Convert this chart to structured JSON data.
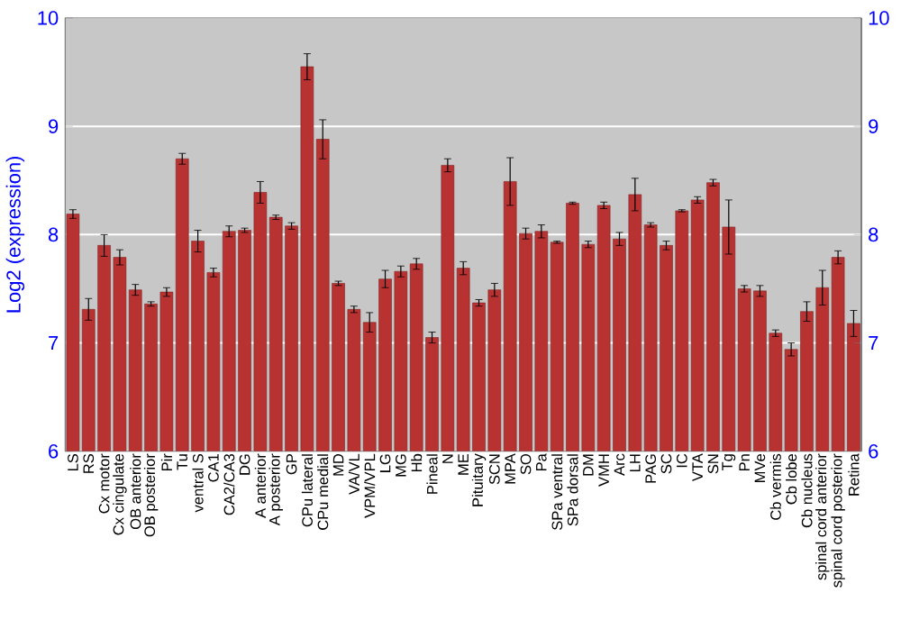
{
  "chart_data": {
    "type": "bar",
    "ylabel": "Log2 (expression)",
    "categories": [
      "LS",
      "RS",
      "Cx motor",
      "Cx cingulate",
      "OB anterior",
      "OB posterior",
      "Pir",
      "Tu",
      "ventral S",
      "CA1",
      "CA2/CA3",
      "DG",
      "A anterior",
      "A posterior",
      "GP",
      "CPu lateral",
      "CPu medial",
      "MD",
      "VA/VL",
      "VPM/VPL",
      "LG",
      "MG",
      "Hb",
      "Pineal",
      "N",
      "ME",
      "Pituitary",
      "SCN",
      "MPA",
      "SO",
      "Pa",
      "SPa ventral",
      "SPa dorsal",
      "DM",
      "VMH",
      "Arc",
      "LH",
      "PAG",
      "SC",
      "IC",
      "VTA",
      "SN",
      "Tg",
      "Pn",
      "MVe",
      "Cb vermis",
      "Cb lobe",
      "Cb nucleus",
      "spinal cord anterior",
      "spinal cord posterior",
      "Retina"
    ],
    "values": [
      8.19,
      7.31,
      7.9,
      7.79,
      7.49,
      7.36,
      7.47,
      8.7,
      7.94,
      7.65,
      8.03,
      8.04,
      8.39,
      8.16,
      8.08,
      9.55,
      8.88,
      7.55,
      7.31,
      7.19,
      7.59,
      7.66,
      7.73,
      7.05,
      8.64,
      7.69,
      7.37,
      7.49,
      8.49,
      8.01,
      8.03,
      7.93,
      8.29,
      7.91,
      8.27,
      7.96,
      8.37,
      8.09,
      7.9,
      8.22,
      8.32,
      8.48,
      8.07,
      7.5,
      7.48,
      7.09,
      6.94,
      7.29,
      7.51,
      7.79,
      7.18
    ],
    "errors": [
      0.04,
      0.1,
      0.1,
      0.07,
      0.05,
      0.02,
      0.04,
      0.05,
      0.1,
      0.04,
      0.05,
      0.02,
      0.1,
      0.02,
      0.03,
      0.12,
      0.18,
      0.02,
      0.03,
      0.09,
      0.08,
      0.05,
      0.05,
      0.05,
      0.06,
      0.06,
      0.03,
      0.06,
      0.22,
      0.05,
      0.06,
      0.01,
      0.01,
      0.03,
      0.03,
      0.06,
      0.15,
      0.02,
      0.04,
      0.01,
      0.03,
      0.03,
      0.25,
      0.03,
      0.05,
      0.03,
      0.06,
      0.09,
      0.16,
      0.06,
      0.12
    ],
    "color": "#b83232",
    "ylim": [
      6,
      10
    ],
    "yticks": [
      6,
      7,
      8,
      9,
      10
    ],
    "y2lim": [
      6,
      10
    ],
    "y2ticks": [
      6,
      7,
      8,
      9,
      10
    ],
    "grid": "y"
  }
}
